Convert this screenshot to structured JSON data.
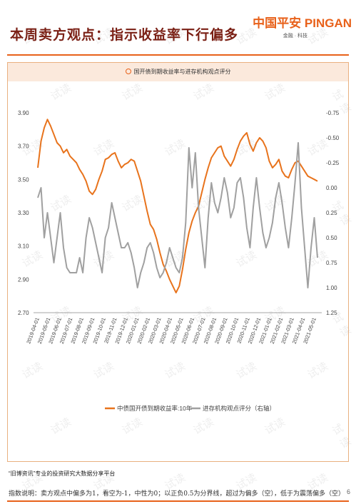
{
  "page": {
    "title": "本周卖方观点：指示收益率下行偏多",
    "logo_main": "中国平安 PINGAN",
    "logo_sub": "金融 · 科技",
    "source": "“旧博资讯”专业的投资研究大数据分享平台",
    "footnote": "指数说明：卖方观点中偏多为1，看空为-1，中性为0；以正负0.5为分界线，超过为偏多（空），低于为震荡偏多（空）",
    "page_number": "6",
    "watermark": "试读"
  },
  "chart_data": {
    "type": "line",
    "title": "国开债到期收益率与进存机构观点评分",
    "x_tick_labels": [
      "2019-04-01",
      "2019-05-01",
      "2019-06-01",
      "2019-07-01",
      "2019-08-01",
      "2019-09-01",
      "2019-10-01",
      "2019-11-01",
      "2019-12-01",
      "2020-01-01",
      "2020-02-01",
      "2020-03-01",
      "2020-04-01",
      "2020-05-01",
      "2020-06-01",
      "2020-07-01",
      "2020-08-01",
      "2020-09-01",
      "2020-10-01",
      "2020-11-01",
      "2020-12-01",
      "2021-01-01",
      "2021-02-01",
      "2021-03-01",
      "2021-04-01",
      "2021-05-01"
    ],
    "left_axis": {
      "ticks": [
        "3.90",
        "3.70",
        "3.50",
        "3.30",
        "3.10",
        "2.90",
        "2.70"
      ],
      "range": [
        2.7,
        3.9
      ]
    },
    "right_axis": {
      "ticks": [
        "-0.75",
        "-0.50",
        "-0.25",
        "0.00",
        "0.25",
        "0.50",
        "0.75",
        "1.00",
        "1.25"
      ],
      "range": [
        -0.75,
        1.25
      ],
      "inverted": true
    },
    "legend_position": "bottom",
    "grid": false,
    "series": [
      {
        "name": "中债国开债到期收益率:10年",
        "axis": "left",
        "color": "#e8731c",
        "values": [
          3.57,
          3.73,
          3.81,
          3.86,
          3.82,
          3.77,
          3.72,
          3.7,
          3.66,
          3.68,
          3.64,
          3.62,
          3.6,
          3.56,
          3.53,
          3.49,
          3.43,
          3.41,
          3.44,
          3.5,
          3.55,
          3.62,
          3.63,
          3.65,
          3.66,
          3.61,
          3.57,
          3.59,
          3.6,
          3.62,
          3.61,
          3.55,
          3.49,
          3.4,
          3.31,
          3.23,
          3.2,
          3.14,
          3.06,
          2.99,
          2.95,
          2.9,
          2.86,
          2.82,
          2.86,
          2.96,
          3.08,
          3.18,
          3.25,
          3.3,
          3.34,
          3.42,
          3.5,
          3.57,
          3.63,
          3.66,
          3.69,
          3.7,
          3.64,
          3.61,
          3.58,
          3.62,
          3.68,
          3.73,
          3.76,
          3.78,
          3.71,
          3.67,
          3.72,
          3.75,
          3.73,
          3.69,
          3.61,
          3.57,
          3.59,
          3.62,
          3.55,
          3.52,
          3.51,
          3.56,
          3.6,
          3.61,
          3.58,
          3.55,
          3.52,
          3.51,
          3.5,
          3.49
        ]
      },
      {
        "name": "进存机构观点评分（右轴）",
        "axis": "right",
        "color": "#a0a0a0",
        "values": [
          0.1,
          0.0,
          0.5,
          0.25,
          0.5,
          0.75,
          0.5,
          0.25,
          0.6,
          0.8,
          0.85,
          0.85,
          0.85,
          0.7,
          0.85,
          0.5,
          0.3,
          0.4,
          0.55,
          0.7,
          0.85,
          0.5,
          0.4,
          0.15,
          0.3,
          0.45,
          0.6,
          0.6,
          0.55,
          0.65,
          0.8,
          1.0,
          0.85,
          0.75,
          0.6,
          0.55,
          0.65,
          0.8,
          0.9,
          0.85,
          0.75,
          0.6,
          0.7,
          0.8,
          0.85,
          0.7,
          0.35,
          -0.4,
          0.0,
          -0.35,
          0.2,
          0.5,
          0.8,
          0.3,
          -0.05,
          0.15,
          0.25,
          0.1,
          -0.1,
          0.05,
          0.3,
          0.2,
          -0.05,
          -0.1,
          0.1,
          0.4,
          0.6,
          0.2,
          -0.1,
          0.2,
          0.45,
          0.6,
          0.5,
          0.35,
          0.1,
          -0.05,
          0.15,
          0.4,
          0.6,
          0.3,
          -0.05,
          -0.45,
          0.2,
          0.6,
          1.0,
          0.6,
          0.3,
          0.7
        ]
      }
    ]
  }
}
